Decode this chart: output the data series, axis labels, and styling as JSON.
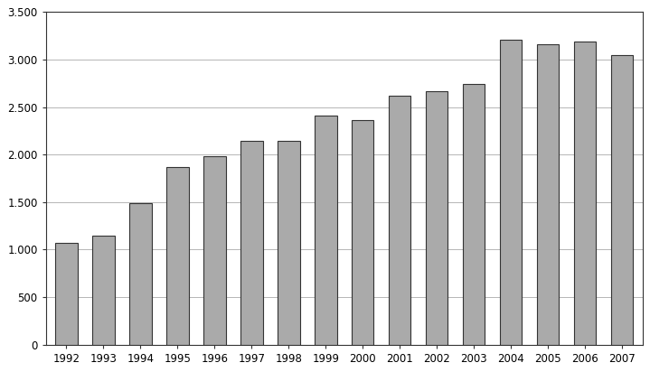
{
  "categories": [
    "1992",
    "1993",
    "1994",
    "1995",
    "1996",
    "1997",
    "1998",
    "1999",
    "2000",
    "2001",
    "2002",
    "2003",
    "2004",
    "2005",
    "2006",
    "2007"
  ],
  "values": [
    1075,
    1150,
    1490,
    1870,
    1980,
    2140,
    2145,
    2415,
    2365,
    2620,
    2665,
    2745,
    3205,
    3165,
    3185,
    3045
  ],
  "bar_color": "#aaaaaa",
  "bar_edgecolor": "#333333",
  "background_color": "#ffffff",
  "outer_border_color": "#555555",
  "ylim": [
    0,
    3500
  ],
  "yticks": [
    0,
    500,
    1000,
    1500,
    2000,
    2500,
    3000,
    3500
  ],
  "ytick_labels": [
    "0",
    "500",
    "1.000",
    "1.500",
    "2.000",
    "2.500",
    "3.000",
    "3.500"
  ],
  "grid_color": "#aaaaaa",
  "tick_fontsize": 8.5,
  "bar_width": 0.6,
  "spine_color": "#333333",
  "figsize": [
    7.19,
    4.12
  ],
  "dpi": 100
}
